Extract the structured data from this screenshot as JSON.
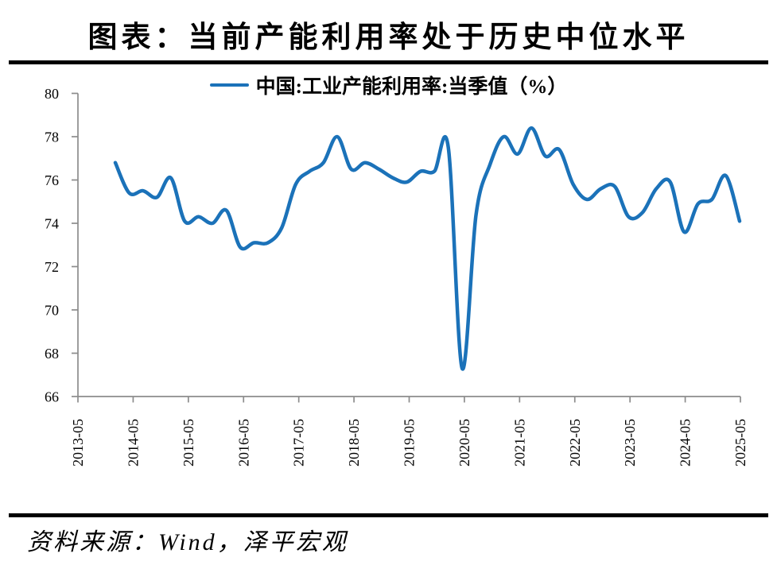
{
  "page": {
    "title": "图表：当前产能利用率处于历史中位水平",
    "source": "资料来源：Wind，泽平宏观"
  },
  "legend": {
    "label": "中国:工业产能利用率:当季值（%）"
  },
  "colors": {
    "line": "#1B72B9",
    "axis": "#8C8C8C",
    "text": "#000000",
    "rule": "#000000"
  },
  "chart_data": {
    "type": "line",
    "title": "图表：当前产能利用率处于历史中位水平",
    "legend_entries": [
      "中国:工业产能利用率:当季值（%）"
    ],
    "legend_position": "top-center",
    "grid": false,
    "ylim": [
      66,
      80
    ],
    "y_ticks": [
      80,
      78,
      76,
      74,
      72,
      70,
      68,
      66
    ],
    "x_tick_labels": [
      "2013-05",
      "2014-05",
      "2015-05",
      "2016-05",
      "2017-05",
      "2018-05",
      "2019-05",
      "2020-05",
      "2021-05",
      "2022-05",
      "2023-05",
      "2024-05",
      "2025-05"
    ],
    "x": [
      "2013-12",
      "2014-03",
      "2014-06",
      "2014-09",
      "2014-12",
      "2015-03",
      "2015-06",
      "2015-09",
      "2015-12",
      "2016-03",
      "2016-06",
      "2016-09",
      "2016-12",
      "2017-03",
      "2017-06",
      "2017-09",
      "2017-12",
      "2018-03",
      "2018-06",
      "2018-09",
      "2018-12",
      "2019-03",
      "2019-06",
      "2019-09",
      "2019-12",
      "2020-03",
      "2020-06",
      "2020-09",
      "2020-12",
      "2021-03",
      "2021-06",
      "2021-09",
      "2021-12",
      "2022-03",
      "2022-06",
      "2022-09",
      "2022-12",
      "2023-03",
      "2023-06",
      "2023-09",
      "2023-12",
      "2024-03",
      "2024-06",
      "2024-09",
      "2024-12",
      "2025-03"
    ],
    "values": [
      76.8,
      75.4,
      75.5,
      75.2,
      76.1,
      74.1,
      74.3,
      74.0,
      74.6,
      72.9,
      73.1,
      73.1,
      73.8,
      75.8,
      76.4,
      76.8,
      78.0,
      76.5,
      76.8,
      76.5,
      76.1,
      75.9,
      76.4,
      76.4,
      77.5,
      67.3,
      74.4,
      76.7,
      78.0,
      77.2,
      78.4,
      77.1,
      77.4,
      75.8,
      75.1,
      75.6,
      75.7,
      74.3,
      74.5,
      75.6,
      75.9,
      73.6,
      74.9,
      75.1,
      76.2,
      74.1
    ],
    "series_name": "中国:工业产能利用率:当季值（%）",
    "xlabel": "",
    "ylabel": ""
  }
}
